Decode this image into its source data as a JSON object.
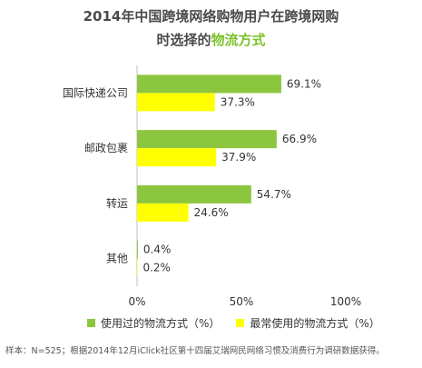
{
  "title_line1": "2014年中国跨境网络购物用户在跨境网购",
  "title_line2_prefix": "时选择的",
  "title_line2_highlight": "物流方式",
  "footnote": "样本：N=525；根据2014年12月iClick社区第十四届艾瑞网民网络习惯及消费行为调研数据获得。",
  "colors": {
    "series1": "#8cc63f",
    "series2": "#ffff00",
    "title_highlight": "#7cc12a",
    "axis": "#bfbfbf"
  },
  "chart_data": {
    "type": "bar",
    "orientation": "horizontal",
    "categories": [
      "国际快递公司",
      "邮政包裹",
      "转运",
      "其他"
    ],
    "series": [
      {
        "name": "使用过的物流方式（%）",
        "values": [
          69.1,
          66.9,
          54.7,
          0.4
        ],
        "labels": [
          "69.1%",
          "66.9%",
          "54.7%",
          "0.4%"
        ]
      },
      {
        "name": "最常使用的物流方式（%）",
        "values": [
          37.3,
          37.9,
          24.6,
          0.2
        ],
        "labels": [
          "37.3%",
          "37.9%",
          "24.6%",
          "0.2%"
        ]
      }
    ],
    "xlim": [
      0,
      100
    ],
    "xticks": [
      "0%",
      "50%",
      "100%"
    ],
    "grid": false,
    "legend_position": "bottom"
  }
}
